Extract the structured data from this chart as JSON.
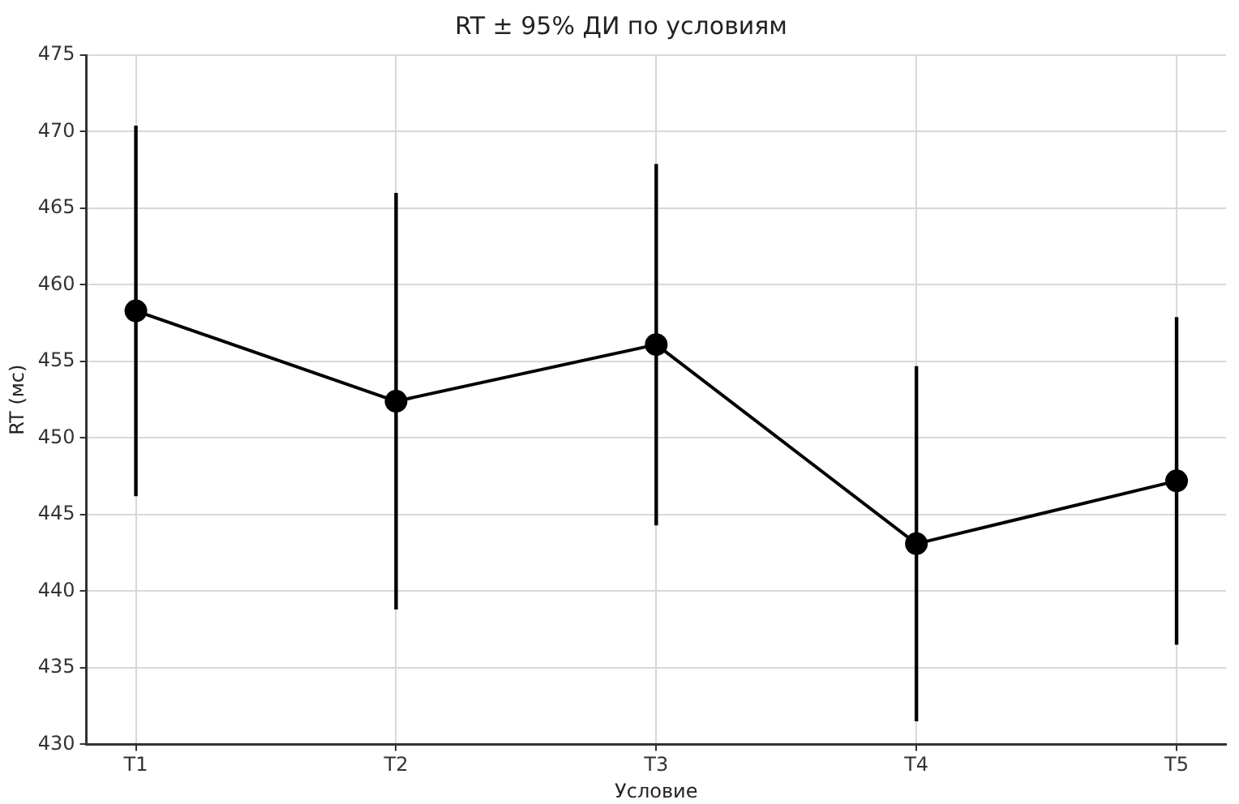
{
  "chart_data": {
    "type": "line",
    "title": "RT ± 95% ДИ по условиям",
    "xlabel": "Условие",
    "ylabel": "RT (мс)",
    "categories": [
      "T1",
      "T2",
      "T3",
      "T4",
      "T5"
    ],
    "series": [
      {
        "color": "#000000",
        "values": [
          458.3,
          452.4,
          456.1,
          443.1,
          447.2
        ],
        "errors": [
          12.1,
          13.6,
          11.8,
          11.6,
          10.7
        ]
      }
    ],
    "ylim": [
      430,
      475
    ],
    "yticks": [
      430,
      435,
      440,
      445,
      450,
      455,
      460,
      465,
      470,
      475
    ],
    "grid": true,
    "legend": false,
    "marker": "circle",
    "line_style": "solid"
  }
}
